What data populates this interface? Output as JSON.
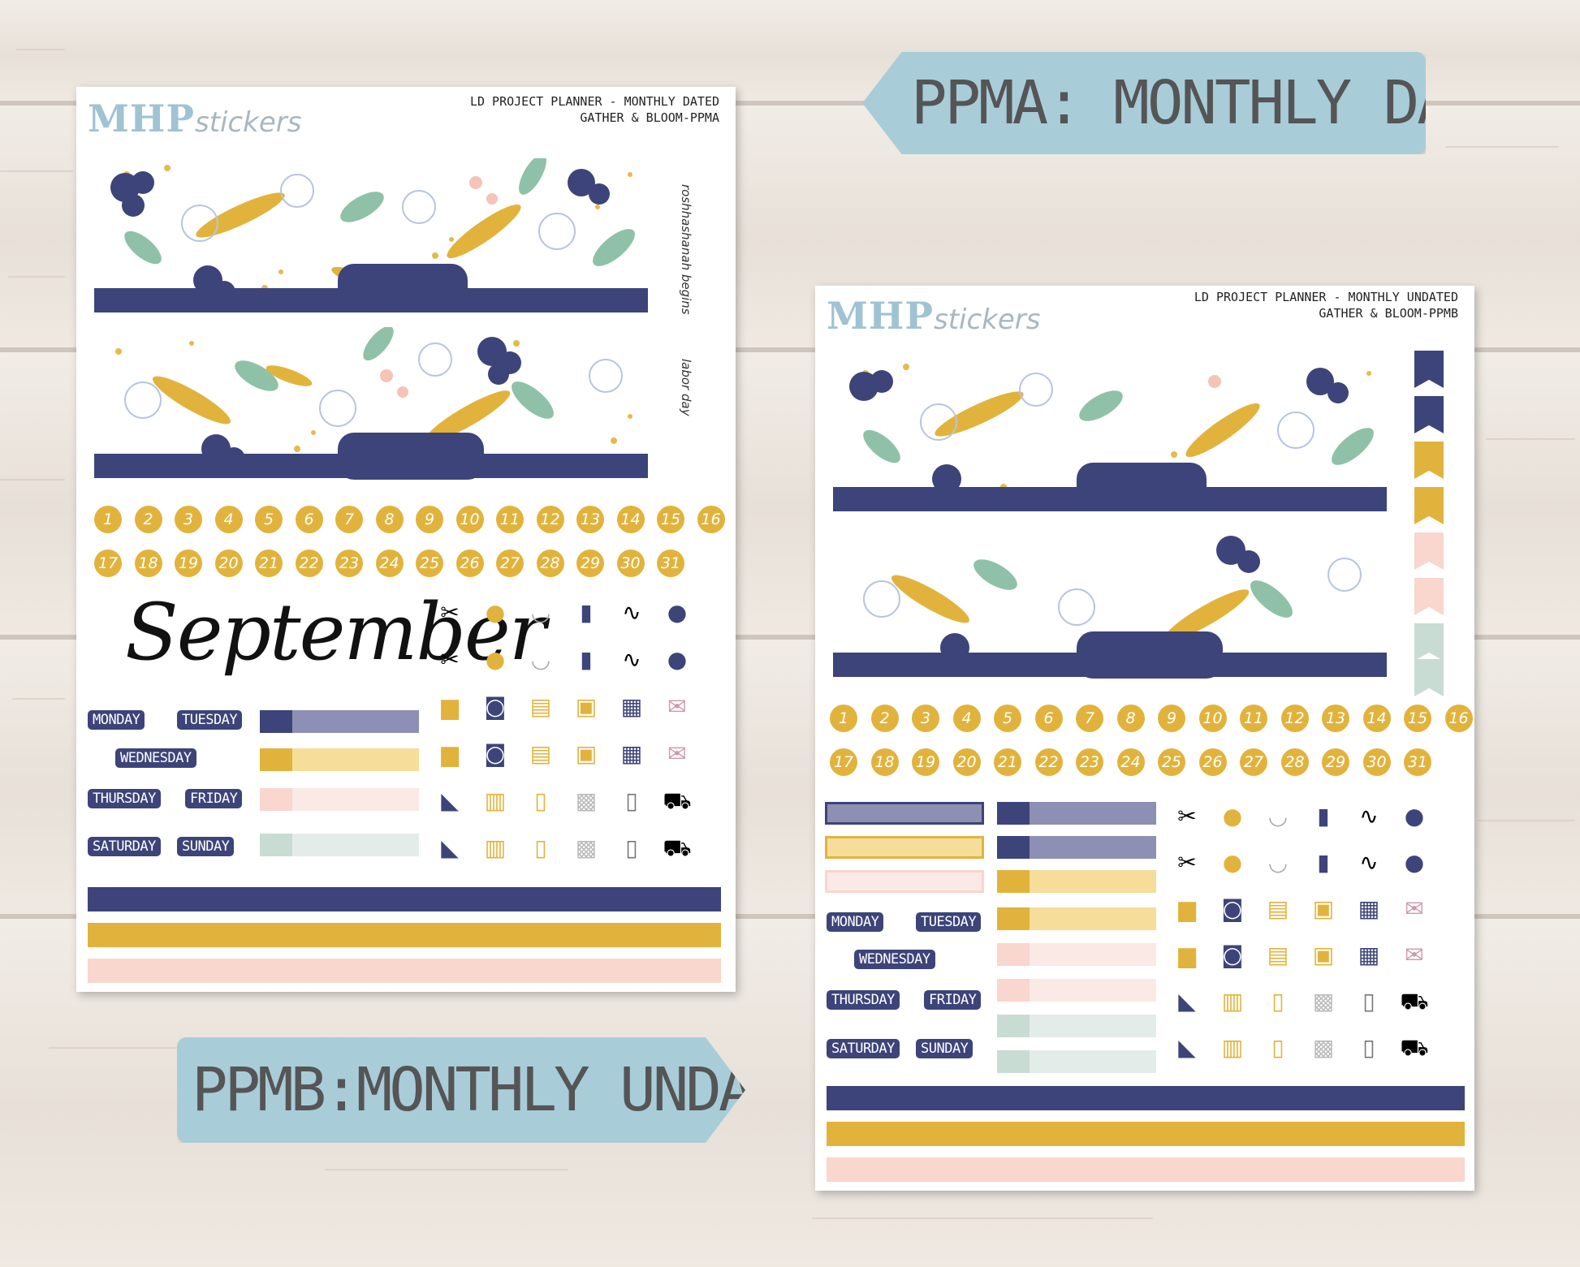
{
  "colors": {
    "navy": "#3d4479",
    "navy_light": "#8e8fb4",
    "mustard": "#e2b33c",
    "mustard_light": "#f6dd9a",
    "blush": "#f9d6ce",
    "blush_light": "#fbe9e5",
    "sage": "#c9dcd3",
    "sage_light": "#e4ecea",
    "label_blue": "#a9ccd9"
  },
  "labels": {
    "top": "PPMA: MONTHLY DATED",
    "bottom": "PPMB:MONTHLY UNDATED"
  },
  "sheet1": {
    "logo_main": "MHP",
    "logo_sub": "stickers",
    "header_line1": "LD PROJECT PLANNER - MONTHLY DATED",
    "header_line2": "GATHER & BLOOM-PPMA",
    "side_label_1": "roshhashanah begins",
    "side_label_2": "labor day",
    "month": "September",
    "days": [
      "MONDAY",
      "TUESDAY",
      "WEDNESDAY",
      "THURSDAY",
      "FRIDAY",
      "SATURDAY",
      "SUNDAY"
    ]
  },
  "sheet2": {
    "logo_main": "MHP",
    "logo_sub": "stickers",
    "header_line1": "LD PROJECT PLANNER - MONTHLY UNDATED",
    "header_line2": "GATHER & BLOOM-PPMB",
    "days": [
      "MONDAY",
      "TUESDAY",
      "WEDNESDAY",
      "THURSDAY",
      "FRIDAY",
      "SATURDAY",
      "SUNDAY"
    ]
  },
  "numbers": [
    "1",
    "2",
    "3",
    "4",
    "5",
    "6",
    "7",
    "8",
    "9",
    "10",
    "11",
    "12",
    "13",
    "14",
    "15",
    "16",
    "17",
    "18",
    "19",
    "20",
    "21",
    "22",
    "23",
    "24",
    "25",
    "26",
    "27",
    "28",
    "29",
    "30",
    "31"
  ],
  "icons": [
    "comb-scissors-icon",
    "piggy-bank-icon",
    "tooth-icon",
    "gas-pump-icon",
    "stethoscope-icon",
    "kettlebell-dumbbell-icon",
    "birthday-cake-icon",
    "washing-machine-icon",
    "medicine-icon",
    "scale-icon",
    "luggage-icon",
    "envelope-icon",
    "sneaker-icon",
    "trash-can-icon",
    "bill-book-icon",
    "package-icon",
    "receipt-icon",
    "shopping-cart-icon"
  ]
}
